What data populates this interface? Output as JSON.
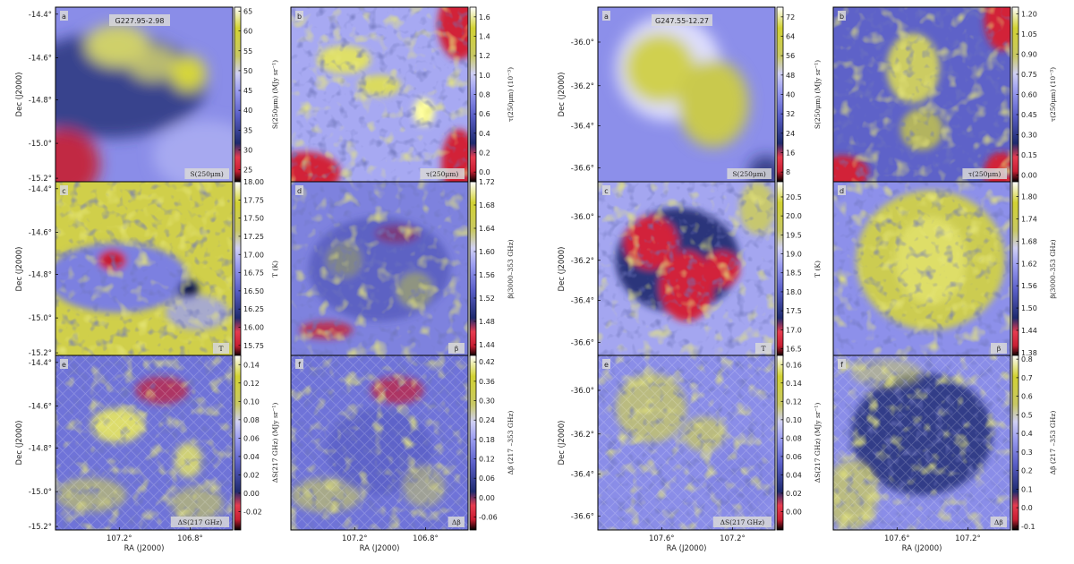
{
  "chart_data": {
    "type": "heatmap",
    "figures": [
      {
        "field": "G227.95-2.98",
        "xlabel": "RA (J2000)",
        "ylabel": "Dec (J2000)",
        "xticks": [
          "107.2°",
          "106.8°"
        ],
        "yticks": [
          "-14.4°",
          "-14.6°",
          "-14.8°",
          "-15.0°",
          "-15.2°"
        ],
        "panels": [
          {
            "letter": "a",
            "badge": "S(250μm)",
            "cbar_label": "S(250μm) (MJy sr⁻¹)",
            "cbar_ticks": [
              "65",
              "60",
              "55",
              "50",
              "45",
              "40",
              "35",
              "30",
              "25"
            ],
            "range": [
              22,
              66
            ]
          },
          {
            "letter": "b",
            "badge": "τ(250μm)",
            "cbar_label": "τ(250μm) (10⁻³)",
            "cbar_ticks": [
              "1.6",
              "1.4",
              "1.2",
              "1.0",
              "0.8",
              "0.6",
              "0.4",
              "0.2",
              "0.0"
            ],
            "range": [
              -0.1,
              1.7
            ]
          },
          {
            "letter": "c",
            "badge": "T",
            "cbar_label": "T (K)",
            "cbar_ticks": [
              "18.00",
              "17.75",
              "17.50",
              "17.25",
              "17.00",
              "16.75",
              "16.50",
              "16.25",
              "16.00",
              "15.75"
            ],
            "range": [
              15.6,
              18.0
            ]
          },
          {
            "letter": "d",
            "badge": "β",
            "cbar_label": "β(3000–353 GHz)",
            "cbar_ticks": [
              "1.72",
              "1.68",
              "1.64",
              "1.60",
              "1.56",
              "1.52",
              "1.48",
              "1.44"
            ],
            "range": [
              1.42,
              1.72
            ]
          },
          {
            "letter": "e",
            "badge": "ΔS(217 GHz)",
            "cbar_label": "ΔS(217 GHz) (MJy sr⁻¹)",
            "cbar_ticks": [
              "0.14",
              "0.12",
              "0.10",
              "0.08",
              "0.06",
              "0.04",
              "0.02",
              "0.00",
              "-0.02"
            ],
            "range": [
              -0.04,
              0.15
            ]
          },
          {
            "letter": "f",
            "badge": "Δβ",
            "cbar_label": "Δβ (217 –353 GHz)",
            "cbar_ticks": [
              "0.42",
              "0.36",
              "0.30",
              "0.24",
              "0.18",
              "0.12",
              "0.06",
              "0.00",
              "-0.06"
            ],
            "range": [
              -0.1,
              0.44
            ]
          }
        ]
      },
      {
        "field": "G247.55-12.27",
        "xlabel": "RA (J2000)",
        "ylabel": "Dec (J2000)",
        "xticks": [
          "107.6°",
          "107.2°"
        ],
        "yticks": [
          "-36.0°",
          "-36.2°",
          "-36.4°",
          "-36.6°"
        ],
        "panels": [
          {
            "letter": "a",
            "badge": "S(250μm)",
            "cbar_label": "S(250μm) (MJy sr⁻¹)",
            "cbar_ticks": [
              "72",
              "64",
              "56",
              "48",
              "40",
              "32",
              "24",
              "16",
              "8"
            ],
            "range": [
              4,
              76
            ]
          },
          {
            "letter": "b",
            "badge": "τ(250μm)",
            "cbar_label": "τ(250μm) (10⁻³)",
            "cbar_ticks": [
              "1.20",
              "1.05",
              "0.90",
              "0.75",
              "0.60",
              "0.45",
              "0.30",
              "0.15",
              "0.00"
            ],
            "range": [
              -0.05,
              1.25
            ]
          },
          {
            "letter": "c",
            "badge": "T",
            "cbar_label": "T (K)",
            "cbar_ticks": [
              "20.5",
              "20.0",
              "19.5",
              "19.0",
              "18.5",
              "18.0",
              "17.5",
              "17.0",
              "16.5"
            ],
            "range": [
              16.3,
              20.9
            ]
          },
          {
            "letter": "d",
            "badge": "β",
            "cbar_label": "β(3000–353 GHz)",
            "cbar_ticks": [
              "1.80",
              "1.74",
              "1.68",
              "1.62",
              "1.56",
              "1.50",
              "1.44",
              "1.38"
            ],
            "range": [
              1.37,
              1.84
            ]
          },
          {
            "letter": "e",
            "badge": "ΔS(217 GHz)",
            "cbar_label": "ΔS(217 GHz) (MJy sr⁻¹)",
            "cbar_ticks": [
              "0.16",
              "0.14",
              "0.12",
              "0.10",
              "0.08",
              "0.06",
              "0.04",
              "0.02",
              "0.00"
            ],
            "range": [
              -0.02,
              0.17
            ]
          },
          {
            "letter": "f",
            "badge": "Δβ",
            "cbar_label": "Δβ (217 –353 GHz)",
            "cbar_ticks": [
              "0.8",
              "0.7",
              "0.6",
              "0.5",
              "0.4",
              "0.3",
              "0.2",
              "0.1",
              "0.0",
              "-0.1"
            ],
            "range": [
              -0.12,
              0.82
            ]
          }
        ]
      }
    ],
    "colormap": {
      "low": "#c81e32",
      "mid_low": "#1e2a6e",
      "mid": "#8c8ff0",
      "mid_high": "#e6e6ff",
      "high": "#c8c832"
    },
    "grid": false
  }
}
